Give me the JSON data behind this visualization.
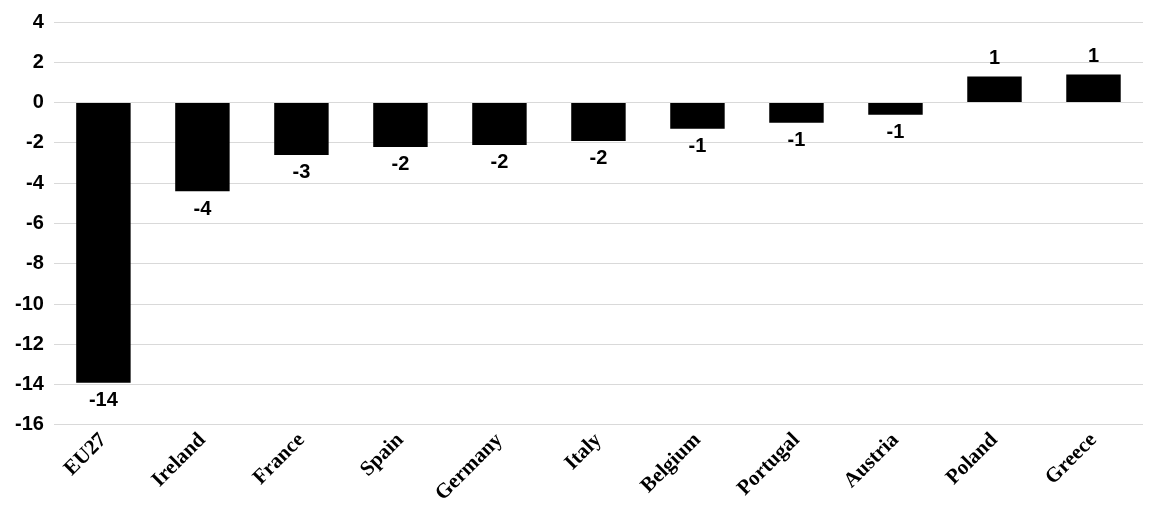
{
  "chart_data": {
    "type": "bar",
    "categories": [
      "EU27",
      "Ireland",
      "France",
      "Spain",
      "Germany",
      "Italy",
      "Belgium",
      "Portugal",
      "Austria",
      "Poland",
      "Greece"
    ],
    "values": [
      -13.9,
      -4.4,
      -2.6,
      -2.2,
      -2.1,
      -1.9,
      -1.3,
      -1.0,
      -0.6,
      1.3,
      1.4
    ],
    "value_labels": [
      "-14",
      "-4",
      "-3",
      "-2",
      "-2",
      "-2",
      "-1",
      "-1",
      "-1",
      "1",
      "1"
    ],
    "color": "#000000",
    "ylim": [
      -16,
      4
    ],
    "yticks": [
      -16,
      -14,
      -12,
      -10,
      -8,
      -6,
      -4,
      -2,
      0,
      2,
      4
    ],
    "grid": "y",
    "legend": false
  }
}
